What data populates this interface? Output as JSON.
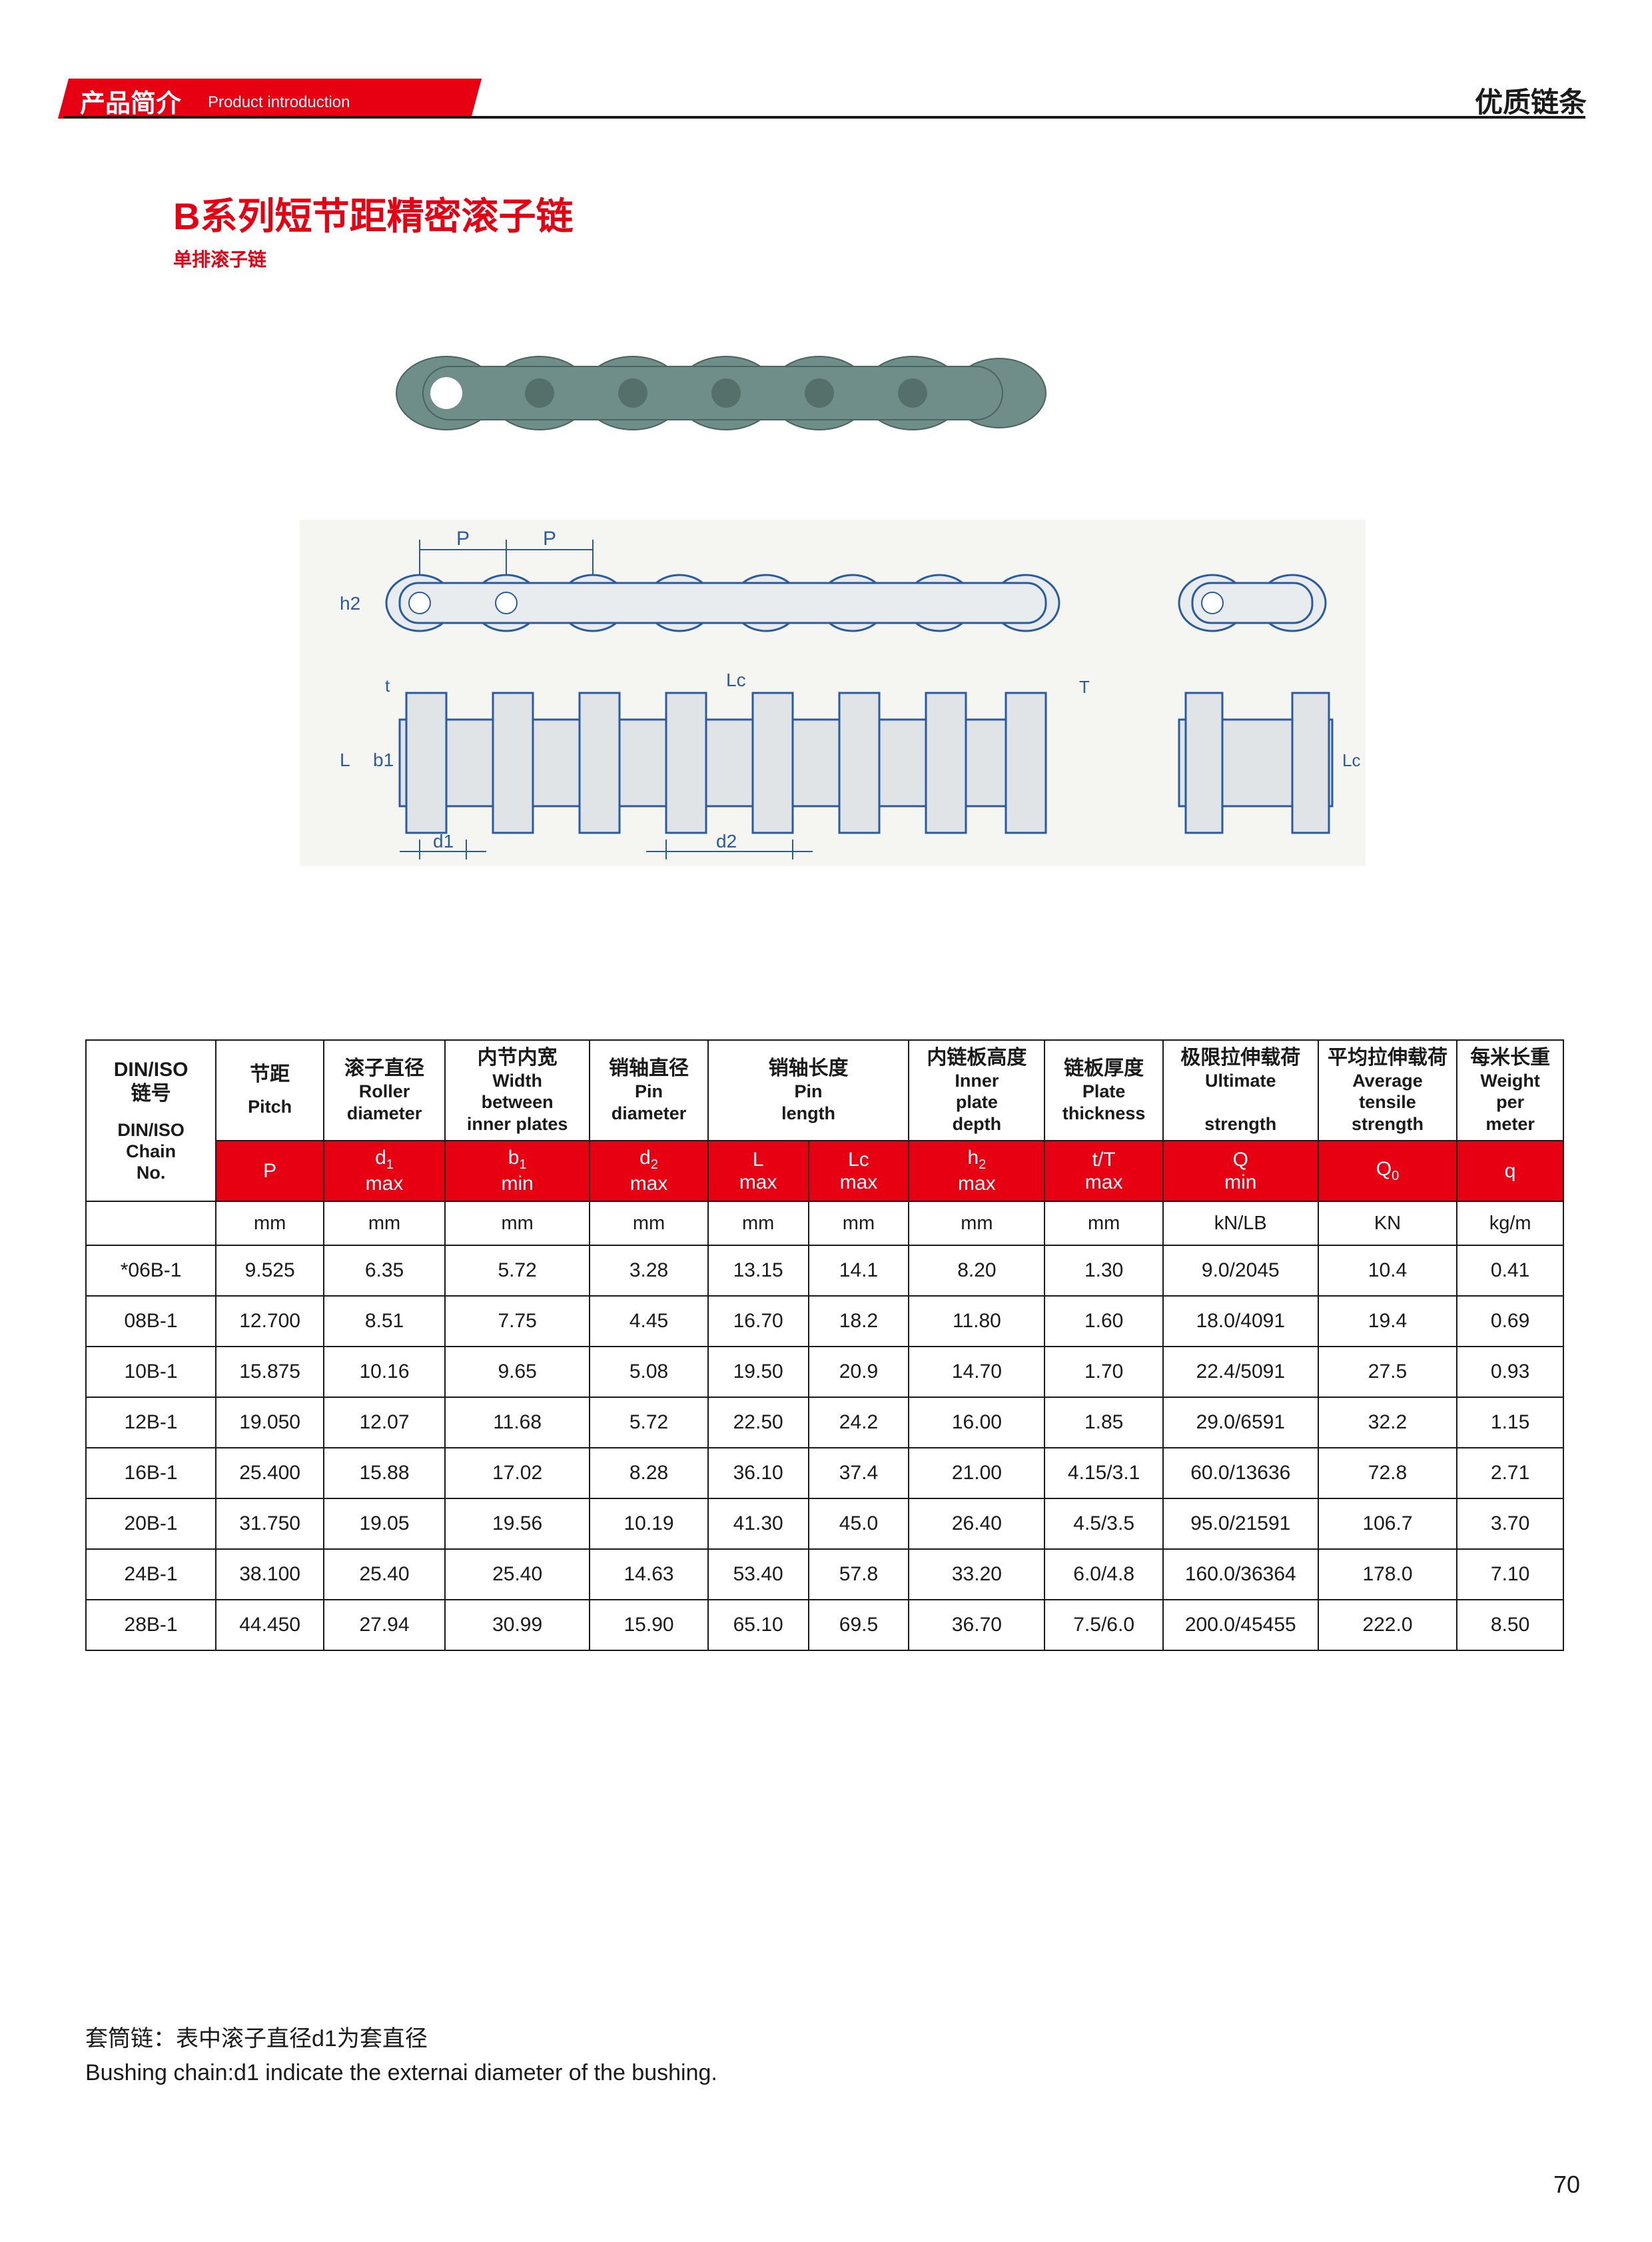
{
  "header": {
    "cn": "产品简介",
    "en": "Product introduction",
    "right": "优质链条"
  },
  "title": "B系列短节距精密滚子链",
  "subtitle": "单排滚子链",
  "diagram": {
    "dim_labels": [
      "P",
      "h2",
      "b1",
      "L",
      "d1",
      "d2",
      "t",
      "Lc",
      "T"
    ],
    "chain_color": "#6f8d89",
    "line_color": "#2a5aa0",
    "bg": "#f5f5f2"
  },
  "table": {
    "cols": [
      {
        "cn": "DIN/ISO\n链号",
        "en": "DIN/ISO\nChain\nNo.",
        "sym": "",
        "unit": ""
      },
      {
        "cn": "节距",
        "en": "Pitch",
        "sym": "P",
        "unit": "mm"
      },
      {
        "cn": "滚子直径",
        "en": "Roller\ndiameter",
        "sym": "d1\nmax",
        "unit": "mm"
      },
      {
        "cn": "内节内宽",
        "en": "Width\nbetween\ninner plates",
        "sym": "b1\nmin",
        "unit": "mm"
      },
      {
        "cn": "销轴直径",
        "en": "Pin\ndiameter",
        "sym": "d2\nmax",
        "unit": "mm"
      },
      {
        "cn": "销轴长度",
        "en": "Pin\nlength",
        "sym": "L\nmax",
        "sym2": "Lc\nmax",
        "unit": "mm",
        "unit2": "mm",
        "span": 2
      },
      {
        "cn": "内链板高度",
        "en": "Inner\nplate\ndepth",
        "sym": "h2\nmax",
        "unit": "mm"
      },
      {
        "cn": "链板厚度",
        "en": "Plate\nthickness",
        "sym": "t/T\nmax",
        "unit": "mm"
      },
      {
        "cn": "极限拉伸载荷",
        "en": "Ultimate\n\nstrength",
        "sym": "Q\nmin",
        "unit": "kN/LB"
      },
      {
        "cn": "平均拉伸载荷",
        "en": "Average\ntensile\nstrength",
        "sym": "Q0",
        "unit": "KN"
      },
      {
        "cn": "每米长重",
        "en": "Weight\nper\nmeter",
        "sym": "q",
        "unit": "kg/m"
      }
    ],
    "rows": [
      [
        "*06B-1",
        "9.525",
        "6.35",
        "5.72",
        "3.28",
        "13.15",
        "14.1",
        "8.20",
        "1.30",
        "9.0/2045",
        "10.4",
        "0.41"
      ],
      [
        "08B-1",
        "12.700",
        "8.51",
        "7.75",
        "4.45",
        "16.70",
        "18.2",
        "11.80",
        "1.60",
        "18.0/4091",
        "19.4",
        "0.69"
      ],
      [
        "10B-1",
        "15.875",
        "10.16",
        "9.65",
        "5.08",
        "19.50",
        "20.9",
        "14.70",
        "1.70",
        "22.4/5091",
        "27.5",
        "0.93"
      ],
      [
        "12B-1",
        "19.050",
        "12.07",
        "11.68",
        "5.72",
        "22.50",
        "24.2",
        "16.00",
        "1.85",
        "29.0/6591",
        "32.2",
        "1.15"
      ],
      [
        "16B-1",
        "25.400",
        "15.88",
        "17.02",
        "8.28",
        "36.10",
        "37.4",
        "21.00",
        "4.15/3.1",
        "60.0/13636",
        "72.8",
        "2.71"
      ],
      [
        "20B-1",
        "31.750",
        "19.05",
        "19.56",
        "10.19",
        "41.30",
        "45.0",
        "26.40",
        "4.5/3.5",
        "95.0/21591",
        "106.7",
        "3.70"
      ],
      [
        "24B-1",
        "38.100",
        "25.40",
        "25.40",
        "14.63",
        "53.40",
        "57.8",
        "33.20",
        "6.0/4.8",
        "160.0/36364",
        "178.0",
        "7.10"
      ],
      [
        "28B-1",
        "44.450",
        "27.94",
        "30.99",
        "15.90",
        "65.10",
        "69.5",
        "36.70",
        "7.5/6.0",
        "200.0/45455",
        "222.0",
        "8.50"
      ]
    ]
  },
  "footnote": {
    "cn": "套筒链：表中滚子直径d1为套直径",
    "en": "Bushing chain:d1 indicate the externai diameter of the bushing."
  },
  "page_num": "70",
  "colors": {
    "red": "#e60012",
    "black": "#1a1a1a",
    "white": "#ffffff"
  }
}
